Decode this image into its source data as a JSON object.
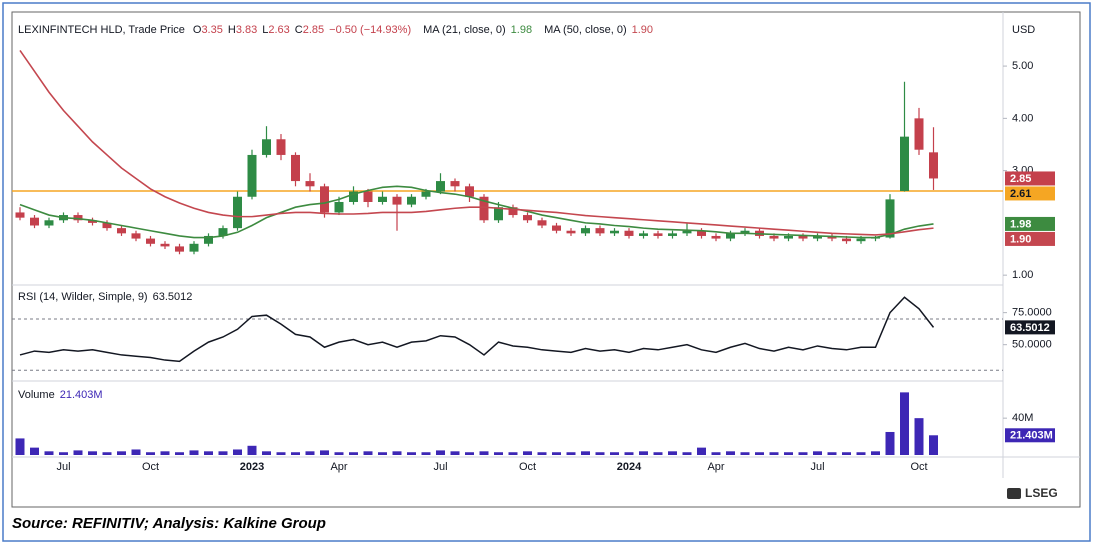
{
  "chart_data": [
    {
      "type": "candlestick",
      "title": "LEXINFINTECH HLD, Trade Price",
      "ohlc_labels": [
        "O",
        "H",
        "L",
        "C"
      ],
      "change": "−0.50 (−14.93%)",
      "unit": "USD",
      "up_color": "#2e8b45",
      "down_color": "#c4404c",
      "ohlc": [
        [
          2.2,
          2.3,
          2.05,
          2.1
        ],
        [
          2.1,
          2.15,
          1.9,
          1.95
        ],
        [
          1.95,
          2.1,
          1.9,
          2.05
        ],
        [
          2.05,
          2.2,
          2.0,
          2.15
        ],
        [
          2.15,
          2.2,
          2.0,
          2.05
        ],
        [
          2.05,
          2.1,
          1.95,
          2.0
        ],
        [
          2.0,
          2.05,
          1.85,
          1.9
        ],
        [
          1.9,
          1.95,
          1.75,
          1.8
        ],
        [
          1.8,
          1.85,
          1.65,
          1.7
        ],
        [
          1.7,
          1.75,
          1.55,
          1.6
        ],
        [
          1.6,
          1.65,
          1.5,
          1.55
        ],
        [
          1.55,
          1.6,
          1.4,
          1.45
        ],
        [
          1.45,
          1.65,
          1.4,
          1.6
        ],
        [
          1.6,
          1.8,
          1.55,
          1.75
        ],
        [
          1.75,
          1.95,
          1.7,
          1.9
        ],
        [
          1.9,
          2.6,
          1.85,
          2.5
        ],
        [
          2.5,
          3.4,
          2.45,
          3.3
        ],
        [
          3.3,
          3.85,
          3.25,
          3.6
        ],
        [
          3.6,
          3.7,
          3.2,
          3.3
        ],
        [
          3.3,
          3.35,
          2.7,
          2.8
        ],
        [
          2.8,
          2.95,
          2.6,
          2.7
        ],
        [
          2.7,
          2.75,
          2.1,
          2.2
        ],
        [
          2.2,
          2.5,
          2.15,
          2.4
        ],
        [
          2.4,
          2.7,
          2.35,
          2.6
        ],
        [
          2.6,
          2.65,
          2.3,
          2.4
        ],
        [
          2.4,
          2.6,
          2.35,
          2.5
        ],
        [
          2.5,
          2.55,
          1.85,
          2.35
        ],
        [
          2.35,
          2.55,
          2.3,
          2.5
        ],
        [
          2.5,
          2.65,
          2.45,
          2.6
        ],
        [
          2.6,
          2.95,
          2.55,
          2.8
        ],
        [
          2.8,
          2.85,
          2.6,
          2.7
        ],
        [
          2.7,
          2.75,
          2.4,
          2.5
        ],
        [
          2.5,
          2.55,
          2.0,
          2.05
        ],
        [
          2.05,
          2.4,
          2.0,
          2.3
        ],
        [
          2.3,
          2.35,
          2.1,
          2.15
        ],
        [
          2.15,
          2.2,
          2.0,
          2.05
        ],
        [
          2.05,
          2.1,
          1.9,
          1.95
        ],
        [
          1.95,
          2.0,
          1.8,
          1.85
        ],
        [
          1.85,
          1.9,
          1.75,
          1.8
        ],
        [
          1.8,
          1.95,
          1.75,
          1.9
        ],
        [
          1.9,
          1.95,
          1.75,
          1.8
        ],
        [
          1.8,
          1.9,
          1.75,
          1.85
        ],
        [
          1.85,
          1.9,
          1.7,
          1.75
        ],
        [
          1.75,
          1.85,
          1.7,
          1.8
        ],
        [
          1.8,
          1.85,
          1.7,
          1.75
        ],
        [
          1.75,
          1.85,
          1.7,
          1.8
        ],
        [
          1.8,
          2.0,
          1.75,
          1.85
        ],
        [
          1.85,
          1.9,
          1.7,
          1.75
        ],
        [
          1.75,
          1.8,
          1.65,
          1.7
        ],
        [
          1.7,
          1.85,
          1.65,
          1.8
        ],
        [
          1.8,
          1.9,
          1.75,
          1.85
        ],
        [
          1.85,
          1.9,
          1.7,
          1.75
        ],
        [
          1.75,
          1.8,
          1.65,
          1.7
        ],
        [
          1.7,
          1.8,
          1.65,
          1.75
        ],
        [
          1.75,
          1.8,
          1.65,
          1.7
        ],
        [
          1.7,
          1.8,
          1.65,
          1.75
        ],
        [
          1.75,
          1.8,
          1.65,
          1.7
        ],
        [
          1.7,
          1.75,
          1.6,
          1.65
        ],
        [
          1.65,
          1.75,
          1.6,
          1.7
        ],
        [
          1.7,
          1.75,
          1.65,
          1.72
        ],
        [
          1.72,
          2.55,
          1.7,
          2.45
        ],
        [
          2.61,
          4.7,
          2.6,
          3.65
        ],
        [
          4.0,
          4.2,
          3.3,
          3.4
        ],
        [
          3.35,
          3.83,
          2.63,
          2.85
        ]
      ],
      "series": [
        {
          "name": "MA (21, close, 0)",
          "color": "#3d8b40",
          "values": [
            2.35,
            2.25,
            2.15,
            2.1,
            2.08,
            2.05,
            2.0,
            1.95,
            1.9,
            1.85,
            1.8,
            1.75,
            1.72,
            1.72,
            1.75,
            1.82,
            1.95,
            2.1,
            2.2,
            2.3,
            2.35,
            2.38,
            2.45,
            2.55,
            2.62,
            2.68,
            2.7,
            2.68,
            2.62,
            2.58,
            2.55,
            2.5,
            2.42,
            2.35,
            2.28,
            2.22,
            2.15,
            2.1,
            2.05,
            2.0,
            1.98,
            1.95,
            1.93,
            1.9,
            1.88,
            1.87,
            1.86,
            1.85,
            1.83,
            1.8,
            1.8,
            1.79,
            1.78,
            1.77,
            1.76,
            1.75,
            1.74,
            1.73,
            1.72,
            1.72,
            1.78,
            1.88,
            1.94,
            1.98
          ]
        },
        {
          "name": "MA (50, close, 0)",
          "color": "#c4474f",
          "values": [
            5.3,
            4.9,
            4.5,
            4.15,
            3.85,
            3.55,
            3.3,
            3.05,
            2.85,
            2.65,
            2.5,
            2.38,
            2.28,
            2.2,
            2.15,
            2.12,
            2.12,
            2.15,
            2.18,
            2.2,
            2.2,
            2.18,
            2.17,
            2.17,
            2.18,
            2.2,
            2.2,
            2.2,
            2.22,
            2.25,
            2.28,
            2.3,
            2.3,
            2.28,
            2.26,
            2.24,
            2.22,
            2.2,
            2.17,
            2.14,
            2.12,
            2.1,
            2.08,
            2.06,
            2.04,
            2.02,
            2.0,
            1.98,
            1.96,
            1.94,
            1.92,
            1.9,
            1.88,
            1.86,
            1.84,
            1.82,
            1.8,
            1.79,
            1.78,
            1.77,
            1.79,
            1.83,
            1.87,
            1.9
          ],
          "value_labels": [
            null,
            null,
            null,
            null,
            null,
            null,
            null,
            null,
            null,
            null,
            null,
            null,
            null,
            null,
            null,
            null,
            null,
            null,
            null,
            null,
            null,
            null,
            null,
            null,
            null,
            null,
            null,
            null,
            null,
            null,
            null,
            null,
            null,
            null,
            null,
            null,
            null,
            null,
            null,
            null,
            null,
            null,
            null,
            null,
            null,
            null,
            null,
            null,
            null,
            null,
            null,
            null,
            null,
            null,
            null,
            null,
            null,
            null,
            null,
            null,
            null,
            null,
            null,
            "1.90"
          ]
        }
      ],
      "hline": {
        "value": 2.61,
        "color": "#f5a623"
      },
      "ylim": [
        0.85,
        5.92
      ],
      "yticks": [
        {
          "value": 1,
          "label": "1.00"
        },
        {
          "value": 3,
          "label": "3.00"
        },
        {
          "value": 4,
          "label": "4.00"
        },
        {
          "value": 5,
          "label": "5.00"
        }
      ],
      "grid": false
    },
    {
      "type": "line",
      "title": "RSI (14, Wilder, Simple, 9)",
      "color": "#131722",
      "values": [
        42,
        45,
        44,
        46,
        45,
        46,
        44,
        42,
        41,
        40,
        38,
        37,
        45,
        52,
        56,
        62,
        72,
        73,
        66,
        58,
        56,
        48,
        52,
        54,
        50,
        52,
        48,
        52,
        53,
        57,
        56,
        50,
        42,
        52,
        49,
        48,
        46,
        45,
        44,
        47,
        45,
        46,
        44,
        47,
        46,
        48,
        50,
        46,
        44,
        48,
        51,
        47,
        45,
        48,
        46,
        49,
        47,
        46,
        48,
        48,
        75,
        87,
        78,
        63.5012
      ],
      "bands": [
        70,
        30
      ],
      "ylim": [
        24,
        95
      ],
      "yticks": [
        {
          "value": 50,
          "label": "50.0000"
        },
        {
          "value": 75,
          "label": "75.0000"
        }
      ],
      "grid": false
    },
    {
      "type": "bar",
      "title": "Volume",
      "color": "#3d27b5",
      "categories": [
        null,
        null,
        null,
        "Jul",
        null,
        null,
        null,
        null,
        null,
        "Oct",
        null,
        null,
        null,
        null,
        null,
        null,
        "2023",
        null,
        null,
        null,
        null,
        null,
        "Apr",
        null,
        null,
        null,
        null,
        null,
        null,
        "Jul",
        null,
        null,
        null,
        null,
        null,
        "Oct",
        null,
        null,
        null,
        null,
        null,
        null,
        "2024",
        null,
        null,
        null,
        null,
        null,
        "Apr",
        null,
        null,
        null,
        null,
        null,
        null,
        "Jul",
        null,
        null,
        null,
        null,
        null,
        null,
        "Oct",
        null
      ],
      "values": [
        18,
        8,
        4,
        3,
        5,
        4,
        3,
        4,
        6,
        3,
        4,
        3,
        5,
        4,
        4,
        6,
        10,
        4,
        3,
        3,
        4,
        5,
        3,
        3,
        4,
        3,
        4,
        3,
        3,
        5,
        4,
        3,
        4,
        3,
        3,
        4,
        3,
        3,
        3,
        4,
        3,
        3,
        3,
        4,
        3,
        4,
        3,
        8,
        3,
        4,
        3,
        3,
        3,
        3,
        3,
        4,
        3,
        3,
        3,
        4,
        25,
        68,
        40,
        21.403
      ],
      "value_labels": [
        null,
        null,
        null,
        null,
        null,
        null,
        null,
        null,
        null,
        null,
        null,
        null,
        null,
        null,
        null,
        null,
        null,
        null,
        null,
        null,
        null,
        null,
        null,
        null,
        null,
        null,
        null,
        null,
        null,
        null,
        null,
        null,
        null,
        null,
        null,
        null,
        null,
        null,
        null,
        null,
        null,
        null,
        null,
        null,
        null,
        null,
        null,
        null,
        null,
        null,
        null,
        null,
        null,
        null,
        null,
        null,
        null,
        null,
        null,
        null,
        null,
        null,
        null,
        "21.403M"
      ],
      "ylim": [
        0,
        76
      ],
      "yticks": [
        {
          "value": 40,
          "label": "40M"
        }
      ],
      "grid": false
    }
  ],
  "logo": "LSEG",
  "source": "Source: REFINITIV; Analysis: Kalkine Group"
}
